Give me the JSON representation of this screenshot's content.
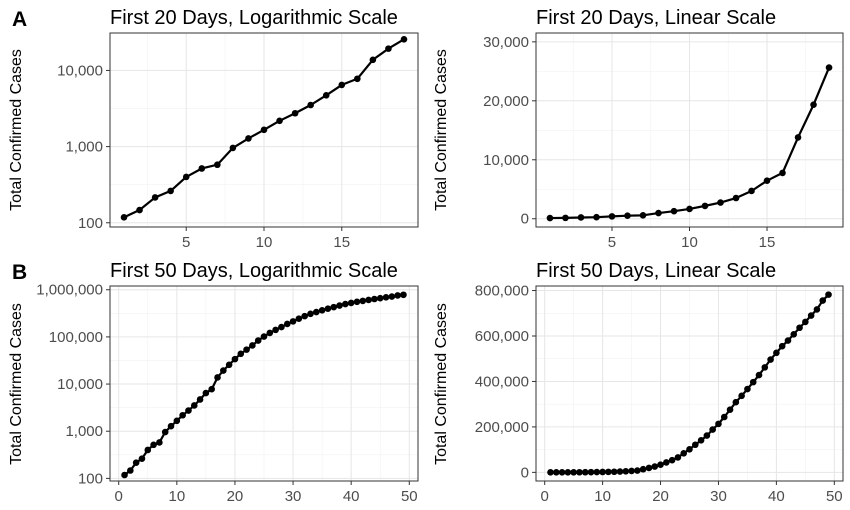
{
  "panel_labels": {
    "a": "A",
    "b": "B"
  },
  "chart_data": [
    {
      "type": "line",
      "title": "First 20 Days, Logarithmic Scale",
      "xlabel": "",
      "ylabel": "Total Confirmed Cases",
      "yscale": "log",
      "xlim": [
        0.1,
        19.9
      ],
      "ylim": [
        88,
        31000
      ],
      "xticks": [
        5,
        10,
        15
      ],
      "yticks": [
        100,
        1000,
        10000
      ],
      "ytick_labels": [
        "100",
        "1,000",
        "10,000"
      ],
      "grid": true,
      "series": [
        {
          "x": [
            1,
            2,
            3,
            4,
            5,
            6,
            7,
            8,
            9,
            10,
            11,
            12,
            13,
            14,
            15,
            16,
            17,
            18,
            19
          ],
          "values": [
            118,
            147,
            215,
            262,
            400,
            516,
            578,
            961,
            1280,
            1661,
            2180,
            2740,
            3517,
            4709,
            6455,
            7771,
            13791,
            19337,
            25632
          ]
        }
      ]
    },
    {
      "type": "line",
      "title": "First 20 Days, Linear Scale",
      "xlabel": "",
      "ylabel": "Total Confirmed Cases",
      "yscale": "linear",
      "xlim": [
        0.1,
        19.9
      ],
      "ylim": [
        -1400,
        31500
      ],
      "xticks": [
        5,
        10,
        15
      ],
      "yticks": [
        0,
        10000,
        20000,
        30000
      ],
      "ytick_labels": [
        "0",
        "10,000",
        "20,000",
        "30,000"
      ],
      "grid": true,
      "series": [
        {
          "x": [
            1,
            2,
            3,
            4,
            5,
            6,
            7,
            8,
            9,
            10,
            11,
            12,
            13,
            14,
            15,
            16,
            17,
            18,
            19
          ],
          "values": [
            118,
            147,
            215,
            262,
            400,
            516,
            578,
            961,
            1280,
            1661,
            2180,
            2740,
            3517,
            4709,
            6455,
            7771,
            13791,
            19337,
            25632
          ]
        }
      ]
    },
    {
      "type": "line",
      "title": "First 50 Days, Logarithmic Scale",
      "xlabel": "",
      "ylabel": "Total Confirmed Cases",
      "yscale": "log",
      "xlim": [
        -1.5,
        51.5
      ],
      "ylim": [
        88,
        1200000
      ],
      "xticks": [
        0,
        10,
        20,
        30,
        40,
        50
      ],
      "yticks": [
        100,
        1000,
        10000,
        100000,
        1000000
      ],
      "ytick_labels": [
        "100",
        "1,000",
        "10,000",
        "100,000",
        "1,000,000"
      ],
      "grid": true,
      "series": [
        {
          "x": [
            1,
            2,
            3,
            4,
            5,
            6,
            7,
            8,
            9,
            10,
            11,
            12,
            13,
            14,
            15,
            16,
            17,
            18,
            19,
            20,
            21,
            22,
            23,
            24,
            25,
            26,
            27,
            28,
            29,
            30,
            31,
            32,
            33,
            34,
            35,
            36,
            37,
            38,
            39,
            40,
            41,
            42,
            43,
            44,
            45,
            46,
            47,
            48,
            49
          ],
          "values": [
            118,
            147,
            215,
            262,
            400,
            516,
            578,
            961,
            1280,
            1661,
            2180,
            2740,
            3517,
            4709,
            6455,
            7771,
            13791,
            19337,
            25632,
            33800,
            43700,
            53700,
            65800,
            83800,
            101600,
            121500,
            140900,
            161800,
            188200,
            213400,
            243600,
            275600,
            308600,
            336800,
            366600,
            397100,
            428000,
            462000,
            496500,
            526000,
            555300,
            580000,
            607600,
            636300,
            662000,
            690000,
            717000,
            756000,
            782000
          ]
        }
      ]
    },
    {
      "type": "line",
      "title": "First 50 Days, Linear Scale",
      "xlabel": "",
      "ylabel": "Total Confirmed Cases",
      "yscale": "linear",
      "xlim": [
        -1.5,
        51.5
      ],
      "ylim": [
        -38000,
        820000
      ],
      "xticks": [
        0,
        10,
        20,
        30,
        40,
        50
      ],
      "yticks": [
        0,
        200000,
        400000,
        600000,
        800000
      ],
      "ytick_labels": [
        "0",
        "200,000",
        "400,000",
        "600,000",
        "800,000"
      ],
      "grid": true,
      "series": [
        {
          "x": [
            1,
            2,
            3,
            4,
            5,
            6,
            7,
            8,
            9,
            10,
            11,
            12,
            13,
            14,
            15,
            16,
            17,
            18,
            19,
            20,
            21,
            22,
            23,
            24,
            25,
            26,
            27,
            28,
            29,
            30,
            31,
            32,
            33,
            34,
            35,
            36,
            37,
            38,
            39,
            40,
            41,
            42,
            43,
            44,
            45,
            46,
            47,
            48,
            49
          ],
          "values": [
            118,
            147,
            215,
            262,
            400,
            516,
            578,
            961,
            1280,
            1661,
            2180,
            2740,
            3517,
            4709,
            6455,
            7771,
            13791,
            19337,
            25632,
            33800,
            43700,
            53700,
            65800,
            83800,
            101600,
            121500,
            140900,
            161800,
            188200,
            213400,
            243600,
            275600,
            308600,
            336800,
            366600,
            397100,
            428000,
            462000,
            496500,
            526000,
            555300,
            580000,
            607600,
            636300,
            662000,
            690000,
            717000,
            756000,
            782000
          ]
        }
      ]
    }
  ]
}
